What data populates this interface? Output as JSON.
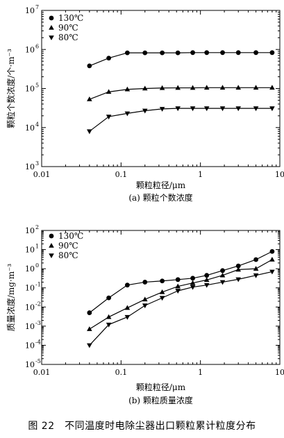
{
  "figure_caption": "图 22　不同温度时电除尘器出口颗粒累计粒度分布",
  "chart_data": [
    {
      "type": "line",
      "subtitle": "(a) 颗粒个数浓度",
      "xlabel": "颗粒粒径/μm",
      "ylabel": "颗粒个数浓度/个·m⁻³",
      "x_scale": "log",
      "y_scale": "log",
      "xlim": [
        0.01,
        10
      ],
      "ylim": [
        1000,
        10000000
      ],
      "x_tick_labels": [
        "0.01",
        "0.1",
        "1",
        "10"
      ],
      "y_tick_exponents": [
        "3",
        "4",
        "5",
        "6",
        "7"
      ],
      "legend_position": "top-left",
      "x": [
        0.04,
        0.07,
        0.12,
        0.2,
        0.33,
        0.52,
        0.8,
        1.2,
        1.9,
        3.0,
        5.0,
        8.0
      ],
      "series": [
        {
          "name": "130℃",
          "marker": "circle",
          "values": [
            380000,
            600000,
            820000,
            820000,
            820000,
            820000,
            830000,
            830000,
            830000,
            830000,
            830000,
            830000
          ]
        },
        {
          "name": "90℃",
          "marker": "triangle-up",
          "values": [
            53000,
            82000,
            95000,
            100000,
            103000,
            104000,
            104000,
            105000,
            105000,
            105000,
            105000,
            105000
          ]
        },
        {
          "name": "80℃",
          "marker": "triangle-down",
          "values": [
            8000,
            19000,
            23000,
            27000,
            30000,
            31000,
            31000,
            31000,
            31000,
            31000,
            31000,
            31000
          ]
        }
      ]
    },
    {
      "type": "line",
      "subtitle": "(b) 颗粒质量浓度",
      "xlabel": "颗粒粒径/μm",
      "ylabel": "质量浓度/mg·m⁻³",
      "x_scale": "log",
      "y_scale": "log",
      "xlim": [
        0.01,
        10
      ],
      "ylim": [
        1e-05,
        100
      ],
      "x_tick_labels": [
        "0.01",
        "0.1",
        "1",
        "10"
      ],
      "y_tick_exponents": [
        "-5",
        "-4",
        "-3",
        "-2",
        "-1",
        "0",
        "1",
        "2"
      ],
      "legend_position": "top-left",
      "x": [
        0.04,
        0.07,
        0.12,
        0.2,
        0.33,
        0.52,
        0.8,
        1.2,
        1.9,
        3.0,
        5.0,
        8.0
      ],
      "series": [
        {
          "name": "130℃",
          "marker": "circle",
          "values": [
            0.005,
            0.03,
            0.14,
            0.2,
            0.23,
            0.27,
            0.32,
            0.45,
            0.8,
            1.4,
            3.0,
            8.0
          ]
        },
        {
          "name": "90℃",
          "marker": "triangle-up",
          "values": [
            0.0007,
            0.003,
            0.009,
            0.025,
            0.06,
            0.12,
            0.18,
            0.26,
            0.45,
            0.9,
            1.0,
            3.0
          ]
        },
        {
          "name": "80℃",
          "marker": "triangle-down",
          "values": [
            0.0001,
            0.0012,
            0.003,
            0.012,
            0.03,
            0.07,
            0.11,
            0.14,
            0.2,
            0.28,
            0.45,
            0.7
          ]
        }
      ]
    }
  ]
}
